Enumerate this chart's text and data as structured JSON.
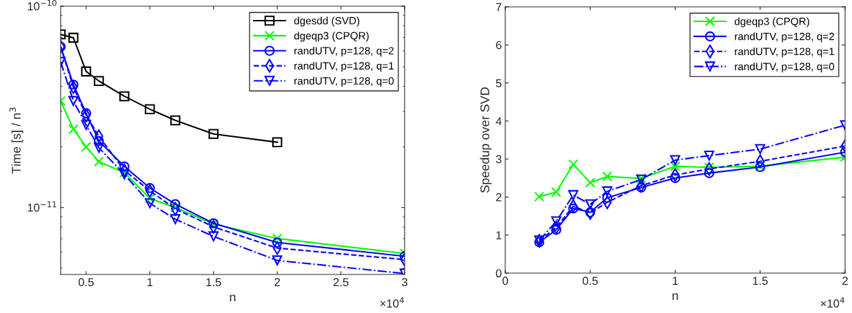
{
  "chart_data": [
    {
      "type": "line",
      "xlabel": "n",
      "ylabel": "Time [s] / n$^{3}$",
      "log": "y",
      "xlim": [
        0.3,
        3
      ],
      "xticks": [
        0.5,
        1,
        1.5,
        2,
        2.5,
        3
      ],
      "ylim": [
        4.65e-12,
        1e-10
      ],
      "yticks": [
        {
          "value": 1e-11,
          "label": "10$^{−11}$"
        },
        {
          "value": 1e-10,
          "label": "10$^{−10}$"
        }
      ],
      "grid": false,
      "legend": "top right",
      "annotations": [
        "×10$^{4}$"
      ],
      "series": [
        {
          "name": "dgesdd (SVD)",
          "color": "#000000",
          "marker": "square",
          "line_style": "solid",
          "x": [
            0.3,
            0.4,
            0.5,
            0.6,
            0.8,
            1,
            1.2,
            1.5,
            2
          ],
          "values": [
            7.24e-11,
            6.97e-11,
            4.74e-11,
            4.25e-11,
            3.57e-11,
            3.08e-11,
            2.71e-11,
            2.32e-11,
            2.11e-11
          ]
        },
        {
          "name": "dgeqp3 (CPQR)",
          "color": "#00ff00",
          "marker": "cross",
          "line_style": "solid",
          "x": [
            0.3,
            0.4,
            0.5,
            0.6,
            0.8,
            1,
            1.2,
            1.5,
            2,
            3
          ],
          "values": [
            3.38e-11,
            2.45e-11,
            2e-11,
            1.69e-11,
            1.49e-11,
            1.11e-11,
            1e-11,
            8.28e-12,
            7.02e-12,
            5.91e-12
          ]
        },
        {
          "name": "randUTV, p=128, q=2",
          "color": "#0000ff",
          "marker": "circle",
          "line_style": "solid",
          "x": [
            0.3,
            0.4,
            0.5,
            0.6,
            0.8,
            1,
            1.2,
            1.5,
            2,
            3
          ],
          "values": [
            6.29e-11,
            4.08e-11,
            2.94e-11,
            2.14e-11,
            1.6e-11,
            1.25e-11,
            1.04e-11,
            8.35e-12,
            6.7e-12,
            5.73e-12
          ]
        },
        {
          "name": "randUTV, p=128, q=1",
          "color": "#0000ff",
          "marker": "diamond",
          "line_style": "dashed",
          "x": [
            0.3,
            0.4,
            0.5,
            0.6,
            0.8,
            1,
            1.2,
            1.5,
            2,
            3
          ],
          "values": [
            6.29e-11,
            3.96e-11,
            2.87e-11,
            2.26e-11,
            1.53e-11,
            1.21e-11,
            9.85e-12,
            8.02e-12,
            6.29e-12,
            5.51e-12
          ]
        },
        {
          "name": "randUTV, p=128, q=0",
          "color": "#0000ff",
          "marker": "triangle",
          "line_style": "dashdot",
          "x": [
            0.3,
            0.4,
            0.5,
            0.6,
            0.8,
            1,
            1.2,
            1.5,
            2,
            3
          ],
          "values": [
            5.29e-11,
            3.38e-11,
            2.57e-11,
            1.98e-11,
            1.46e-11,
            1.05e-11,
            8.75e-12,
            7.19e-12,
            5.46e-12,
            4.7e-12
          ]
        }
      ]
    },
    {
      "type": "line",
      "xlabel": "n",
      "ylabel": "Speedup over SVD",
      "xlim": [
        0,
        2
      ],
      "xticks": [
        0,
        0.5,
        1,
        1.5,
        2
      ],
      "ylim": [
        0,
        7
      ],
      "yticks": [
        0,
        1,
        2,
        3,
        4,
        5,
        6,
        7
      ],
      "grid": false,
      "legend": "top right",
      "annotations": [
        "×10$^{4}$"
      ],
      "series": [
        {
          "name": "dgeqp3 (CPQR)",
          "color": "#00ff00",
          "marker": "cross",
          "line_style": "solid",
          "x": [
            0.2,
            0.3,
            0.4,
            0.5,
            0.6,
            0.8,
            1,
            1.2,
            1.5,
            2
          ],
          "values": [
            2.01,
            2.13,
            2.86,
            2.38,
            2.54,
            2.49,
            2.81,
            2.78,
            2.81,
            3.05
          ]
        },
        {
          "name": "randUTV, p=128, q=2",
          "color": "#0000ff",
          "marker": "circle",
          "line_style": "solid",
          "x": [
            0.2,
            0.3,
            0.4,
            0.5,
            0.6,
            0.8,
            1,
            1.2,
            1.5,
            2
          ],
          "values": [
            0.81,
            1.14,
            1.7,
            1.6,
            1.98,
            2.25,
            2.5,
            2.63,
            2.79,
            3.18
          ]
        },
        {
          "name": "randUTV, p=128, q=1",
          "color": "#0000ff",
          "marker": "diamond",
          "line_style": "dashed",
          "x": [
            0.2,
            0.3,
            0.4,
            0.5,
            0.6,
            0.8,
            1,
            1.2,
            1.5,
            2
          ],
          "values": [
            0.85,
            1.2,
            1.76,
            1.58,
            1.86,
            2.3,
            2.58,
            2.74,
            2.94,
            3.34
          ]
        },
        {
          "name": "randUTV, p=128, q=0",
          "color": "#0000ff",
          "marker": "triangle",
          "line_style": "dashdot",
          "x": [
            0.2,
            0.3,
            0.4,
            0.5,
            0.6,
            0.8,
            1,
            1.2,
            1.5,
            2
          ],
          "values": [
            0.86,
            1.36,
            2.05,
            1.81,
            2.15,
            2.46,
            2.97,
            3.09,
            3.26,
            3.89
          ]
        }
      ]
    }
  ]
}
